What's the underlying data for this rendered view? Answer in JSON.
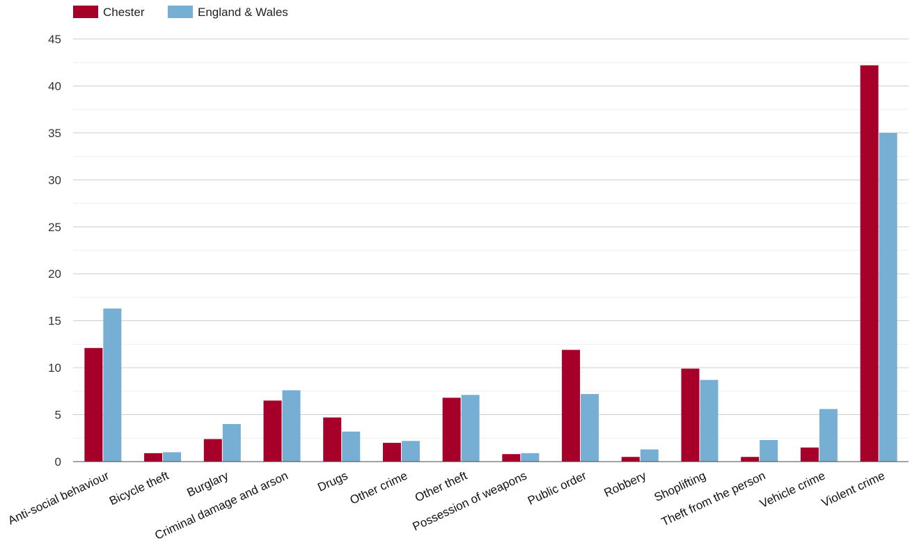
{
  "chart_data": {
    "type": "bar",
    "categories": [
      "Anti-social behaviour",
      "Bicycle theft",
      "Burglary",
      "Criminal damage and arson",
      "Drugs",
      "Other crime",
      "Other theft",
      "Possession of weapons",
      "Public order",
      "Robbery",
      "Shoplifting",
      "Theft from the person",
      "Vehicle crime",
      "Violent crime"
    ],
    "series": [
      {
        "name": "Chester",
        "color": "#a6002a",
        "values": [
          12.1,
          0.9,
          2.4,
          6.5,
          4.7,
          2.0,
          6.8,
          0.8,
          11.9,
          0.5,
          9.9,
          0.5,
          1.5,
          42.2
        ]
      },
      {
        "name": "England & Wales",
        "color": "#76aed4",
        "values": [
          16.3,
          1.0,
          4.0,
          7.6,
          3.2,
          2.2,
          7.1,
          0.9,
          7.2,
          1.3,
          8.7,
          2.3,
          5.6,
          35.0
        ]
      }
    ],
    "ylim": [
      0,
      45
    ],
    "yticks": [
      0,
      5,
      10,
      15,
      20,
      25,
      30,
      35,
      40,
      45
    ],
    "grid": true,
    "legend_position": "top-left",
    "title": "",
    "xlabel": "",
    "ylabel": ""
  }
}
